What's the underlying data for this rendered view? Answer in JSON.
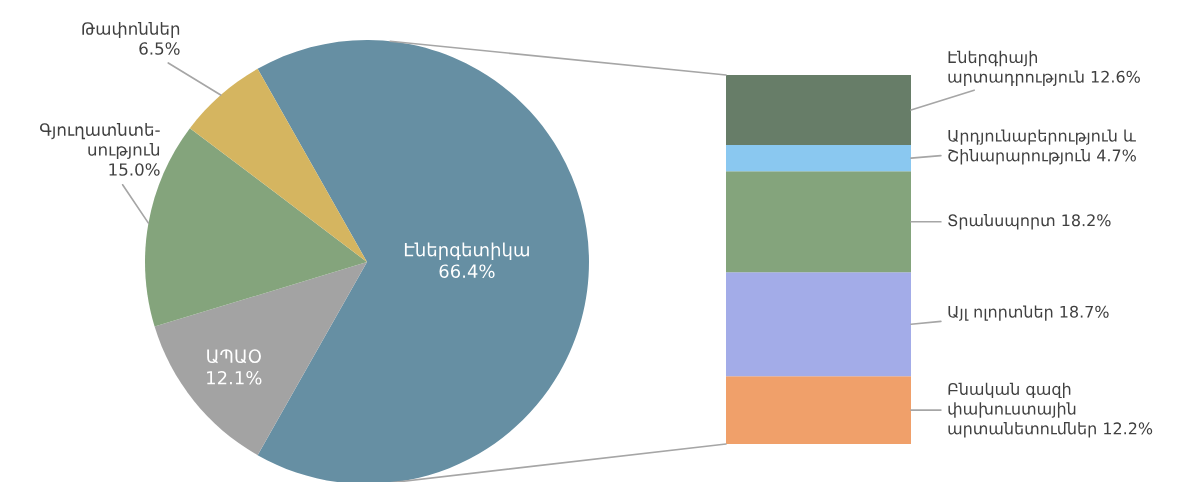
{
  "chart_data": [
    {
      "type": "pie",
      "categories": [
        "Էներգետիկա",
        "ԱՊԱՕ",
        "Գյուղատնտե-\nսություն",
        "Թափոններ"
      ],
      "values": [
        66.4,
        12.1,
        15.0,
        6.5
      ],
      "colors": [
        "#668fa3",
        "#a3a3a3",
        "#84a47c",
        "#d5b560"
      ],
      "value_labels": [
        "66.4%",
        "12.1%",
        "15.0%",
        "6.5%"
      ]
    },
    {
      "type": "bar",
      "stacked": true,
      "categories": [
        null
      ],
      "series": [
        {
          "color": "#f0a06a",
          "values": [
            12.2
          ],
          "value_labels": [
            "Բնական գազի\nփախուստային\nարտանետումներ 12.2%"
          ]
        },
        {
          "color": "#a3ace8",
          "values": [
            18.7
          ],
          "value_labels": [
            "Այլ ոլորտներ 18.7%"
          ]
        },
        {
          "color": "#84a47c",
          "values": [
            18.2
          ],
          "value_labels": [
            "Տրանսպորտ 18.2%"
          ]
        },
        {
          "color": "#8ac8f0",
          "values": [
            4.7
          ],
          "value_labels": [
            "Արդյունաբերություն և\nՇինարարություն 4.7%"
          ]
        },
        {
          "color": "#677d68",
          "values": [
            12.6
          ],
          "value_labels": [
            "Էներգիայի\nարտադրություն 12.6%"
          ]
        }
      ]
    }
  ]
}
